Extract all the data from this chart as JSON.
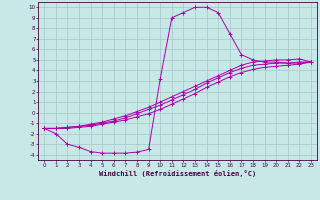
{
  "background_color": "#c8e8e8",
  "grid_color": "#a0c8c8",
  "line_color": "#aa00aa",
  "xlabel": "Windchill (Refroidissement éolien,°C)",
  "xlim": [
    -0.5,
    23.5
  ],
  "ylim": [
    -4.5,
    10.5
  ],
  "ytick_vals": [
    10,
    9,
    8,
    7,
    6,
    5,
    4,
    3,
    2,
    1,
    0,
    -1,
    -2,
    -3,
    -4
  ],
  "xtick_vals": [
    0,
    1,
    2,
    3,
    4,
    5,
    6,
    7,
    8,
    9,
    10,
    11,
    12,
    13,
    14,
    15,
    16,
    17,
    18,
    19,
    20,
    21,
    22,
    23
  ],
  "curve1_x": [
    0,
    1,
    2,
    3,
    4,
    5,
    6,
    7,
    8,
    9,
    10,
    11,
    12,
    13,
    14,
    15,
    16,
    17,
    18,
    19,
    20,
    21,
    22,
    23
  ],
  "curve1_y": [
    -1.5,
    -2.0,
    -3.0,
    -3.3,
    -3.7,
    -3.85,
    -3.85,
    -3.85,
    -3.75,
    -3.5,
    3.2,
    9.0,
    9.5,
    10.0,
    10.0,
    9.5,
    7.5,
    5.5,
    5.0,
    4.8,
    4.8,
    4.7,
    4.7,
    4.8
  ],
  "curve2_x": [
    0,
    1,
    2,
    3,
    4,
    5,
    6,
    7,
    8,
    9,
    10,
    11,
    12,
    13,
    14,
    15,
    16,
    17,
    18,
    19,
    20,
    21,
    22,
    23
  ],
  "curve2_y": [
    -1.5,
    -1.5,
    -1.4,
    -1.3,
    -1.1,
    -0.9,
    -0.6,
    -0.3,
    0.1,
    0.5,
    1.0,
    1.5,
    2.0,
    2.5,
    3.0,
    3.5,
    4.0,
    4.5,
    4.8,
    4.9,
    5.0,
    5.0,
    5.1,
    4.8
  ],
  "curve3_x": [
    0,
    1,
    2,
    3,
    4,
    5,
    6,
    7,
    8,
    9,
    10,
    11,
    12,
    13,
    14,
    15,
    16,
    17,
    18,
    19,
    20,
    21,
    22,
    23
  ],
  "curve3_y": [
    -1.5,
    -1.5,
    -1.4,
    -1.3,
    -1.2,
    -1.0,
    -0.8,
    -0.5,
    -0.1,
    0.3,
    0.7,
    1.2,
    1.7,
    2.2,
    2.8,
    3.3,
    3.8,
    4.2,
    4.5,
    4.6,
    4.7,
    4.7,
    4.8,
    4.8
  ],
  "curve4_x": [
    0,
    1,
    2,
    3,
    4,
    5,
    6,
    7,
    8,
    9,
    10,
    11,
    12,
    13,
    14,
    15,
    16,
    17,
    18,
    19,
    20,
    21,
    22,
    23
  ],
  "curve4_y": [
    -1.5,
    -1.5,
    -1.5,
    -1.4,
    -1.3,
    -1.1,
    -0.9,
    -0.7,
    -0.4,
    -0.1,
    0.3,
    0.8,
    1.3,
    1.8,
    2.4,
    2.9,
    3.4,
    3.8,
    4.1,
    4.3,
    4.4,
    4.5,
    4.6,
    4.8
  ]
}
